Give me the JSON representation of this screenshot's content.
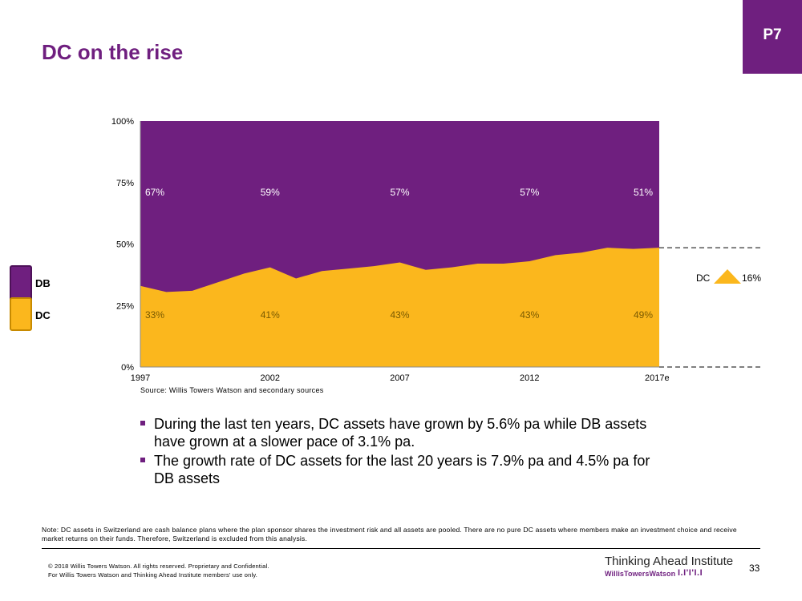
{
  "header": {
    "title": "DC on the rise",
    "tag": "P7"
  },
  "legend": {
    "db_label": "DB",
    "dc_label": "DC"
  },
  "colors": {
    "brand": "#6f1f7f",
    "db": "#6f1f7f",
    "dc": "#fbb71d"
  },
  "chart_data": {
    "type": "area",
    "stacked": true,
    "percent": true,
    "x": [
      1997,
      1998,
      1999,
      2000,
      2001,
      2002,
      2003,
      2004,
      2005,
      2006,
      2007,
      2008,
      2009,
      2010,
      2011,
      2012,
      2013,
      2014,
      2015,
      2016,
      2017
    ],
    "x_ticks": [
      "1997",
      "2002",
      "2007",
      "2012",
      "2017e"
    ],
    "y_ticks": [
      "0%",
      "25%",
      "50%",
      "75%",
      "100%"
    ],
    "ylim": [
      0,
      100
    ],
    "series": [
      {
        "name": "DC",
        "values": [
          33,
          30.5,
          31,
          34.5,
          38,
          40.5,
          36,
          39,
          40,
          41,
          42.5,
          39.5,
          40.5,
          42,
          42,
          43,
          45.5,
          46.5,
          48.5,
          48,
          48.5
        ]
      },
      {
        "name": "DB",
        "values": [
          67,
          69.5,
          69,
          65.5,
          62,
          59.5,
          64,
          61,
          60,
          59,
          57.5,
          60.5,
          59.5,
          58,
          58,
          57,
          54.5,
          53.5,
          51.5,
          52,
          51.5
        ]
      }
    ],
    "data_labels": {
      "db": [
        "67%",
        "59%",
        "57%",
        "57%",
        "51%"
      ],
      "dc": [
        "33%",
        "41%",
        "43%",
        "43%",
        "49%"
      ],
      "years": [
        1997,
        2002,
        2007,
        2012,
        2017
      ]
    },
    "annotation": {
      "label": "DC",
      "value": "16%"
    },
    "source": "Source: Willis Towers Watson and secondary sources"
  },
  "bullets": [
    "During the last ten years, DC assets have grown by 5.6% pa while DB assets have grown at a slower pace of 3.1% pa.",
    "The growth rate of DC assets for the last 20 years is 7.9% pa and 4.5% pa for DB assets"
  ],
  "footer": {
    "note": "Note: DC assets in Switzerland are cash balance plans where the plan sponsor shares the investment risk and all assets are pooled. There are no pure DC assets where members make an investment choice and receive market returns on their funds. Therefore, Switzerland is excluded from this analysis.",
    "copyright_line1": "© 2018 Willis Towers Watson. All rights reserved. Proprietary and Confidential.",
    "copyright_line2": "For Willis Towers Watson and Thinking Ahead Institute members' use only.",
    "institute": "Thinking Ahead Institute",
    "brand": "WillisTowersWatson",
    "brand_mark": "I.I'I'I.I",
    "page_number": "33"
  }
}
